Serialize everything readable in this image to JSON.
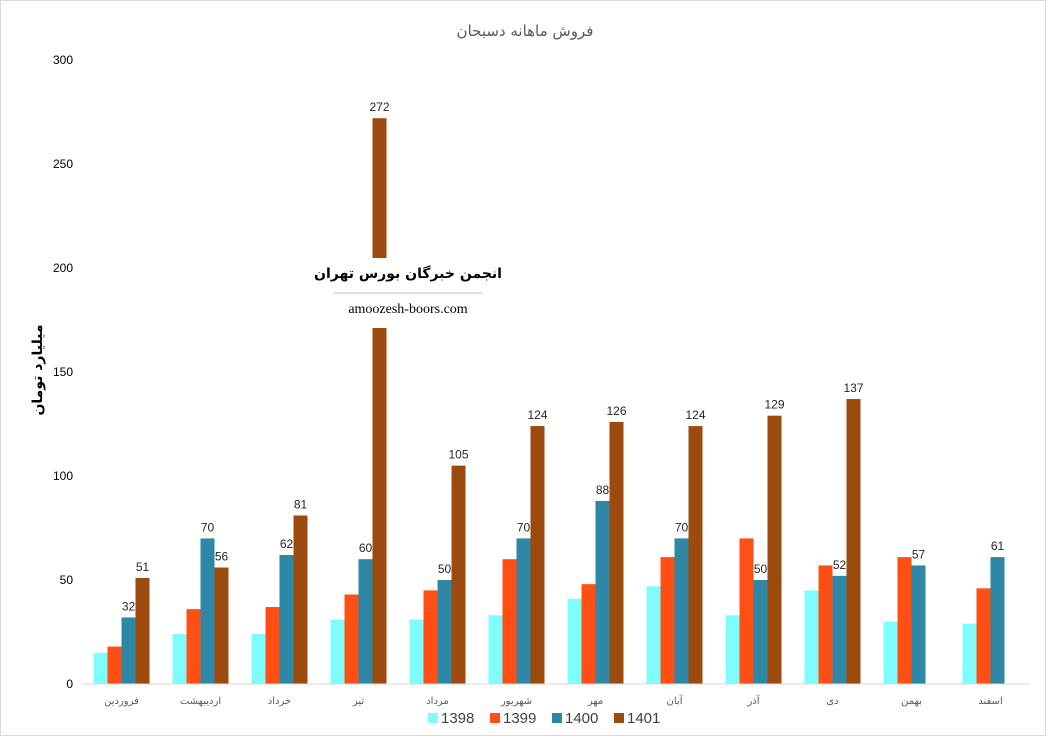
{
  "chart_data": {
    "type": "bar",
    "title": "فروش ماهانه دسبحان",
    "ylabel": "میلیارد تومان",
    "xlabel": "",
    "ylim": [
      0,
      300
    ],
    "yticks": [
      0,
      50,
      100,
      150,
      200,
      250,
      300
    ],
    "grid": false,
    "legend_position": "bottom",
    "categories": [
      "فروردین",
      "اردیبهشت",
      "خرداد",
      "تیر",
      "مرداد",
      "شهریور",
      "مهر",
      "آبان",
      "آذر",
      "دی",
      "بهمن",
      "اسفند"
    ],
    "series": [
      {
        "name": "1398",
        "color": "#7ffcfc",
        "labeled": false,
        "values": [
          15,
          24,
          24,
          31,
          31,
          33,
          41,
          47,
          33,
          45,
          30,
          29
        ]
      },
      {
        "name": "1399",
        "color": "#ff4f14",
        "labeled": false,
        "values": [
          18,
          36,
          37,
          43,
          45,
          60,
          48,
          61,
          70,
          57,
          61,
          46
        ]
      },
      {
        "name": "1400",
        "color": "#2e87a5",
        "labeled": true,
        "values": [
          32,
          70,
          62,
          60,
          50,
          70,
          88,
          70,
          50,
          52,
          57,
          61
        ]
      },
      {
        "name": "1401",
        "color": "#9c4a0e",
        "labeled": true,
        "values": [
          51,
          56,
          81,
          272,
          105,
          124,
          126,
          124,
          129,
          137,
          null,
          null
        ]
      }
    ]
  },
  "watermark": {
    "title": "انجمن خبرگان بورس تهران",
    "site": "amoozesh-boors.com"
  }
}
